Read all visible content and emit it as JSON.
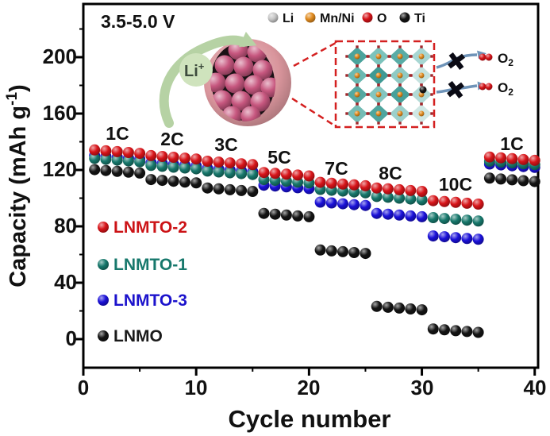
{
  "figure": {
    "voltage_window": "3.5-5.0 V"
  },
  "inset": {
    "li_ion": {
      "label": "Li",
      "sup": "+"
    },
    "atom_legend": [
      {
        "label": "Li",
        "color": "#c6c6c6"
      },
      {
        "label": "Mn/Ni",
        "color": "#e08a1e"
      },
      {
        "label": "O",
        "color": "#d41217"
      },
      {
        "label": "Ti",
        "color": "#141414"
      }
    ],
    "o2": {
      "label": "O",
      "sub": "2"
    },
    "colors": {
      "shell": "#d9959c",
      "particle": "#c7577f",
      "opening": "#1b1115",
      "green_arrow": "#b6d2a4",
      "li_badge": "#cfe3bd",
      "dashed_red": "#d42020",
      "arrow_blue": "#6e93b8",
      "lattice_shades": [
        "#4aa39c",
        "#7cc3bc",
        "#59aca6",
        "#a7d6d2",
        "#6ab8b1",
        "#3f9a94",
        "#8fcac4",
        "#c4e2df",
        "#54a8a1",
        "#83c5bf",
        "#47a09a",
        "#b2dad6",
        "#74bcb5",
        "#4ea59e",
        "#9cd0cb",
        "#cfe7e4"
      ],
      "vertex_dot": "#a1262b"
    }
  },
  "chart_data": {
    "type": "scatter",
    "title": "",
    "xlabel": "Cycle number",
    "ylabel": "Capacity (mAh g⁻¹)",
    "ylabel_parts": {
      "main": "Capacity (mAh g",
      "sup": "-1",
      "end": ")"
    },
    "xlim": [
      0,
      40.3
    ],
    "ylim": [
      -20,
      238
    ],
    "grid": false,
    "legend_position": "inside-left",
    "xticks": [
      0,
      10,
      20,
      30,
      40
    ],
    "xminorticks": [
      5,
      15,
      25,
      35
    ],
    "yticks": [
      0,
      40,
      80,
      120,
      160,
      200
    ],
    "yminorticks": [
      20,
      60,
      100,
      140,
      180,
      220
    ],
    "xticklabels": [
      "0",
      "10",
      "20",
      "30",
      "40"
    ],
    "yticklabels": [
      "0",
      "40",
      "80",
      "120",
      "160",
      "200"
    ],
    "rate_groups": [
      {
        "label": "1C",
        "cycles": [
          1,
          5
        ]
      },
      {
        "label": "2C",
        "cycles": [
          6,
          10
        ]
      },
      {
        "label": "3C",
        "cycles": [
          11,
          15
        ]
      },
      {
        "label": "5C",
        "cycles": [
          16,
          20
        ]
      },
      {
        "label": "7C",
        "cycles": [
          21,
          25
        ]
      },
      {
        "label": "8C",
        "cycles": [
          26,
          30
        ]
      },
      {
        "label": "10C",
        "cycles": [
          31,
          35
        ]
      },
      {
        "label": "1C",
        "cycles": [
          36,
          40
        ]
      }
    ],
    "series": [
      {
        "name": "LNMTO-2",
        "color": "#d81419",
        "values_by_group": [
          133,
          129,
          125,
          117,
          110,
          106,
          97,
          128
        ]
      },
      {
        "name": "LNMTO-1",
        "color": "#17786c",
        "values_by_group": [
          127,
          122,
          118,
          112,
          105,
          100,
          85,
          125
        ]
      },
      {
        "name": "LNMTO-3",
        "color": "#1a10d8",
        "values_by_group": [
          129,
          124,
          120,
          108,
          96,
          88,
          72,
          123
        ]
      },
      {
        "name": "LNMO",
        "color": "#141414",
        "values_by_group": [
          119,
          112,
          106,
          88,
          62,
          22,
          6,
          113
        ]
      }
    ]
  }
}
